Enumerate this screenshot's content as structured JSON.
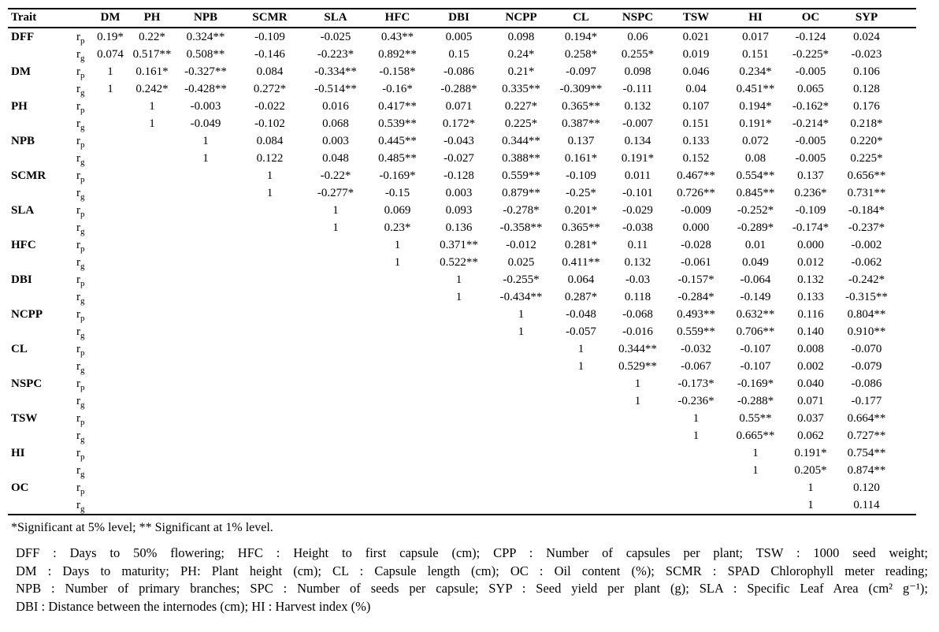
{
  "table": {
    "title_col": "Trait",
    "columns": [
      "DM",
      "PH",
      "NPB",
      "SCMR",
      "SLA",
      "HFC",
      "DBI",
      "NCPP",
      "CL",
      "NSPC",
      "TSW",
      "HI",
      "OC",
      "SYP"
    ],
    "rows": [
      {
        "trait": "DFF",
        "sub": [
          {
            "r": "r",
            "s": "p",
            "values": [
              "0.19*",
              "0.22*",
              "0.324**",
              "-0.109",
              "-0.025",
              "0.43**",
              "0.005",
              "0.098",
              "0.194*",
              "0.06",
              "0.021",
              "0.017",
              "-0.124",
              "0.024"
            ]
          },
          {
            "r": "r",
            "s": "g",
            "values": [
              "0.074",
              "0.517**",
              "0.508**",
              "-0.146",
              "-0.223*",
              "0.892**",
              "0.15",
              "0.24*",
              "0.258*",
              "0.255*",
              "0.019",
              "0.151",
              "-0.225*",
              "-0.023"
            ]
          }
        ]
      },
      {
        "trait": "DM",
        "sub": [
          {
            "r": "r",
            "s": "p",
            "values": [
              "1",
              "0.161*",
              "-0.327**",
              "0.084",
              "-0.334**",
              "-0.158*",
              "-0.086",
              "0.21*",
              "-0.097",
              "0.098",
              "0.046",
              "0.234*",
              "-0.005",
              "0.106"
            ]
          },
          {
            "r": "r",
            "s": "g",
            "values": [
              "1",
              "0.242*",
              "-0.428**",
              "0.272*",
              "-0.514**",
              "-0.16*",
              "-0.288*",
              "0.335**",
              "-0.309**",
              "-0.111",
              "0.04",
              "0.451**",
              "0.065",
              "0.128"
            ]
          }
        ]
      },
      {
        "trait": "PH",
        "sub": [
          {
            "r": "r",
            "s": "p",
            "values": [
              "",
              "1",
              "-0.003",
              "-0.022",
              "0.016",
              "0.417**",
              "0.071",
              "0.227*",
              "0.365**",
              "0.132",
              "0.107",
              "0.194*",
              "-0.162*",
              "0.176"
            ]
          },
          {
            "r": "r",
            "s": "g",
            "values": [
              "",
              "1",
              "-0.049",
              "-0.102",
              "0.068",
              "0.539**",
              "0.172*",
              "0.225*",
              "0.387**",
              "-0.007",
              "0.151",
              "0.191*",
              "-0.214*",
              "0.218*"
            ]
          }
        ]
      },
      {
        "trait": "NPB",
        "sub": [
          {
            "r": "r",
            "s": "p",
            "values": [
              "",
              "",
              "1",
              "0.084",
              "0.003",
              "0.445**",
              "-0.043",
              "0.344**",
              "0.137",
              "0.134",
              "0.133",
              "0.072",
              "-0.005",
              "0.220*"
            ]
          },
          {
            "r": "r",
            "s": "g",
            "values": [
              "",
              "",
              "1",
              "0.122",
              "0.048",
              "0.485**",
              "-0.027",
              "0.388**",
              "0.161*",
              "0.191*",
              "0.152",
              "0.08",
              "-0.005",
              "0.225*"
            ]
          }
        ]
      },
      {
        "trait": "SCMR",
        "sub": [
          {
            "r": "r",
            "s": "p",
            "values": [
              "",
              "",
              "",
              "1",
              "-0.22*",
              "-0.169*",
              "-0.128",
              "0.559**",
              "-0.109",
              "0.011",
              "0.467**",
              "0.554**",
              "0.137",
              "0.656**"
            ]
          },
          {
            "r": "r",
            "s": "g",
            "values": [
              "",
              "",
              "",
              "1",
              "-0.277*",
              "-0.15",
              "0.003",
              "0.879**",
              "-0.25*",
              "-0.101",
              "0.726**",
              "0.845**",
              "0.236*",
              "0.731**"
            ]
          }
        ]
      },
      {
        "trait": "SLA",
        "sub": [
          {
            "r": "r",
            "s": "p",
            "values": [
              "",
              "",
              "",
              "",
              "1",
              "0.069",
              "0.093",
              "-0.278*",
              "0.201*",
              "-0.029",
              "-0.009",
              "-0.252*",
              "-0.109",
              "-0.184*"
            ]
          },
          {
            "r": "r",
            "s": "g",
            "values": [
              "",
              "",
              "",
              "",
              "1",
              "0.23*",
              "0.136",
              "-0.358**",
              "0.365**",
              "-0.038",
              "0.000",
              "-0.289*",
              "-0.174*",
              "-0.237*"
            ]
          }
        ]
      },
      {
        "trait": "HFC",
        "sub": [
          {
            "r": "r",
            "s": "p",
            "values": [
              "",
              "",
              "",
              "",
              "",
              "1",
              "0.371**",
              "-0.012",
              "0.281*",
              "0.11",
              "-0.028",
              "0.01",
              "0.000",
              "-0.002"
            ]
          },
          {
            "r": "r",
            "s": "g",
            "values": [
              "",
              "",
              "",
              "",
              "",
              "1",
              "0.522**",
              "0.025",
              "0.411**",
              "0.132",
              "-0.061",
              "0.049",
              "0.012",
              "-0.062"
            ]
          }
        ]
      },
      {
        "trait": "DBI",
        "sub": [
          {
            "r": "r",
            "s": "p",
            "values": [
              "",
              "",
              "",
              "",
              "",
              "",
              "1",
              "-0.255*",
              "0.064",
              "-0.03",
              "-0.157*",
              "-0.064",
              "0.132",
              "-0.242*"
            ]
          },
          {
            "r": "r",
            "s": "g",
            "values": [
              "",
              "",
              "",
              "",
              "",
              "",
              "1",
              "-0.434**",
              "0.287*",
              "0.118",
              "-0.284*",
              "-0.149",
              "0.133",
              "-0.315**"
            ]
          }
        ]
      },
      {
        "trait": "NCPP",
        "sub": [
          {
            "r": "r",
            "s": "p",
            "values": [
              "",
              "",
              "",
              "",
              "",
              "",
              "",
              "1",
              "-0.048",
              "-0.068",
              "0.493**",
              "0.632**",
              "0.116",
              "0.804**"
            ]
          },
          {
            "r": "r",
            "s": "g",
            "values": [
              "",
              "",
              "",
              "",
              "",
              "",
              "",
              "1",
              "-0.057",
              "-0.016",
              "0.559**",
              "0.706**",
              "0.140",
              "0.910**"
            ]
          }
        ]
      },
      {
        "trait": "CL",
        "sub": [
          {
            "r": "r",
            "s": "p",
            "values": [
              "",
              "",
              "",
              "",
              "",
              "",
              "",
              "",
              "1",
              "0.344**",
              "-0.032",
              "-0.107",
              "0.008",
              "-0.070"
            ]
          },
          {
            "r": "r",
            "s": "g",
            "values": [
              "",
              "",
              "",
              "",
              "",
              "",
              "",
              "",
              "1",
              "0.529**",
              "-0.067",
              "-0.107",
              "0.002",
              "-0.079"
            ]
          }
        ]
      },
      {
        "trait": "NSPC",
        "sub": [
          {
            "r": "r",
            "s": "p",
            "values": [
              "",
              "",
              "",
              "",
              "",
              "",
              "",
              "",
              "",
              "1",
              "-0.173*",
              "-0.169*",
              "0.040",
              "-0.086"
            ]
          },
          {
            "r": "r",
            "s": "g",
            "values": [
              "",
              "",
              "",
              "",
              "",
              "",
              "",
              "",
              "",
              "1",
              "-0.236*",
              "-0.288*",
              "0.071",
              "-0.177"
            ]
          }
        ]
      },
      {
        "trait": "TSW",
        "sub": [
          {
            "r": "r",
            "s": "p",
            "values": [
              "",
              "",
              "",
              "",
              "",
              "",
              "",
              "",
              "",
              "",
              "1",
              "0.55**",
              "0.037",
              "0.664**"
            ]
          },
          {
            "r": "r",
            "s": "g",
            "values": [
              "",
              "",
              "",
              "",
              "",
              "",
              "",
              "",
              "",
              "",
              "1",
              "0.665**",
              "0.062",
              "0.727**"
            ]
          }
        ]
      },
      {
        "trait": "HI",
        "sub": [
          {
            "r": "r",
            "s": "p",
            "values": [
              "",
              "",
              "",
              "",
              "",
              "",
              "",
              "",
              "",
              "",
              "",
              "1",
              "0.191*",
              "0.754**"
            ]
          },
          {
            "r": "r",
            "s": "g",
            "values": [
              "",
              "",
              "",
              "",
              "",
              "",
              "",
              "",
              "",
              "",
              "",
              "1",
              "0.205*",
              "0.874**"
            ]
          }
        ]
      },
      {
        "trait": "OC",
        "sub": [
          {
            "r": "r",
            "s": "p",
            "values": [
              "",
              "",
              "",
              "",
              "",
              "",
              "",
              "",
              "",
              "",
              "",
              "",
              "1",
              "0.120"
            ]
          },
          {
            "r": "r",
            "s": "g",
            "values": [
              "",
              "",
              "",
              "",
              "",
              "",
              "",
              "",
              "",
              "",
              "",
              "",
              "1",
              "0.114"
            ]
          }
        ]
      }
    ]
  },
  "footnotes": {
    "significance": "*Significant at 5% level; ** Significant at 1% level.",
    "abbreviations": [
      "DFF : Days to 50% flowering; HFC : Height to first capsule (cm); CPP : Number of capsules per plant; TSW : 1000 seed weight;",
      "DM : Days to maturity; PH: Plant height (cm); CL : Capsule length (cm); OC : Oil content (%); SCMR : SPAD Chlorophyll meter reading;",
      "NPB : Number of primary branches; SPC : Number of seeds per capsule; SYP : Seed yield per plant (g); SLA : Specific Leaf Area (cm² g⁻¹);",
      "DBI : Distance between the internodes (cm); HI : Harvest index (%)"
    ]
  }
}
